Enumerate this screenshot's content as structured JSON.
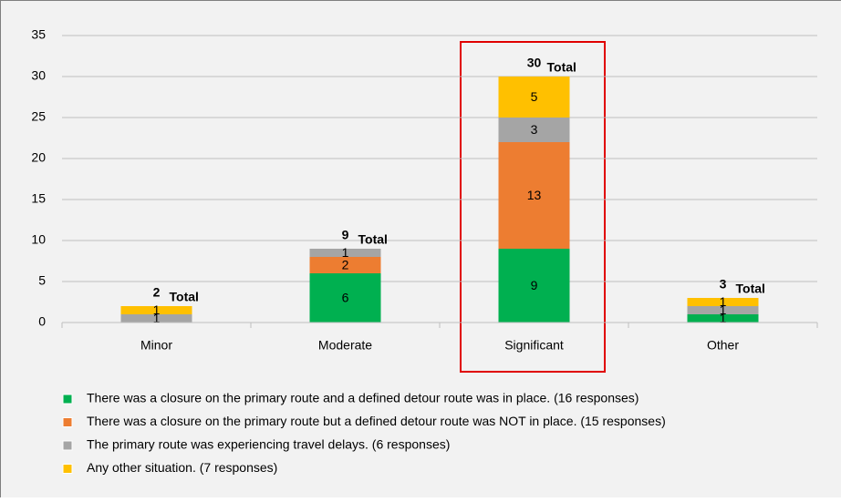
{
  "chart_data": {
    "type": "stacked_bar",
    "categories": [
      "Minor",
      "Moderate",
      "Significant",
      "Other"
    ],
    "series": [
      {
        "name": "There was a closure on the primary route and a defined detour route was in place. (16 responses)",
        "color": "#00b050",
        "values": [
          0,
          6,
          9,
          1
        ]
      },
      {
        "name": "There was a closure on the primary route but a defined detour route was NOT in place. (15 responses)",
        "color": "#ed7d31",
        "values": [
          0,
          2,
          13,
          0
        ]
      },
      {
        "name": "The primary route was experiencing travel delays. (6 responses)",
        "color": "#a5a5a5",
        "values": [
          1,
          1,
          3,
          1
        ]
      },
      {
        "name": "Any other situation. (7 responses)",
        "color": "#ffc000",
        "values": [
          1,
          0,
          5,
          1
        ]
      }
    ],
    "totals": [
      2,
      9,
      30,
      3
    ],
    "total_label": "Total",
    "ylim": [
      0,
      35
    ],
    "yticks": [
      0,
      5,
      10,
      15,
      20,
      25,
      30,
      35
    ],
    "grid": true
  }
}
